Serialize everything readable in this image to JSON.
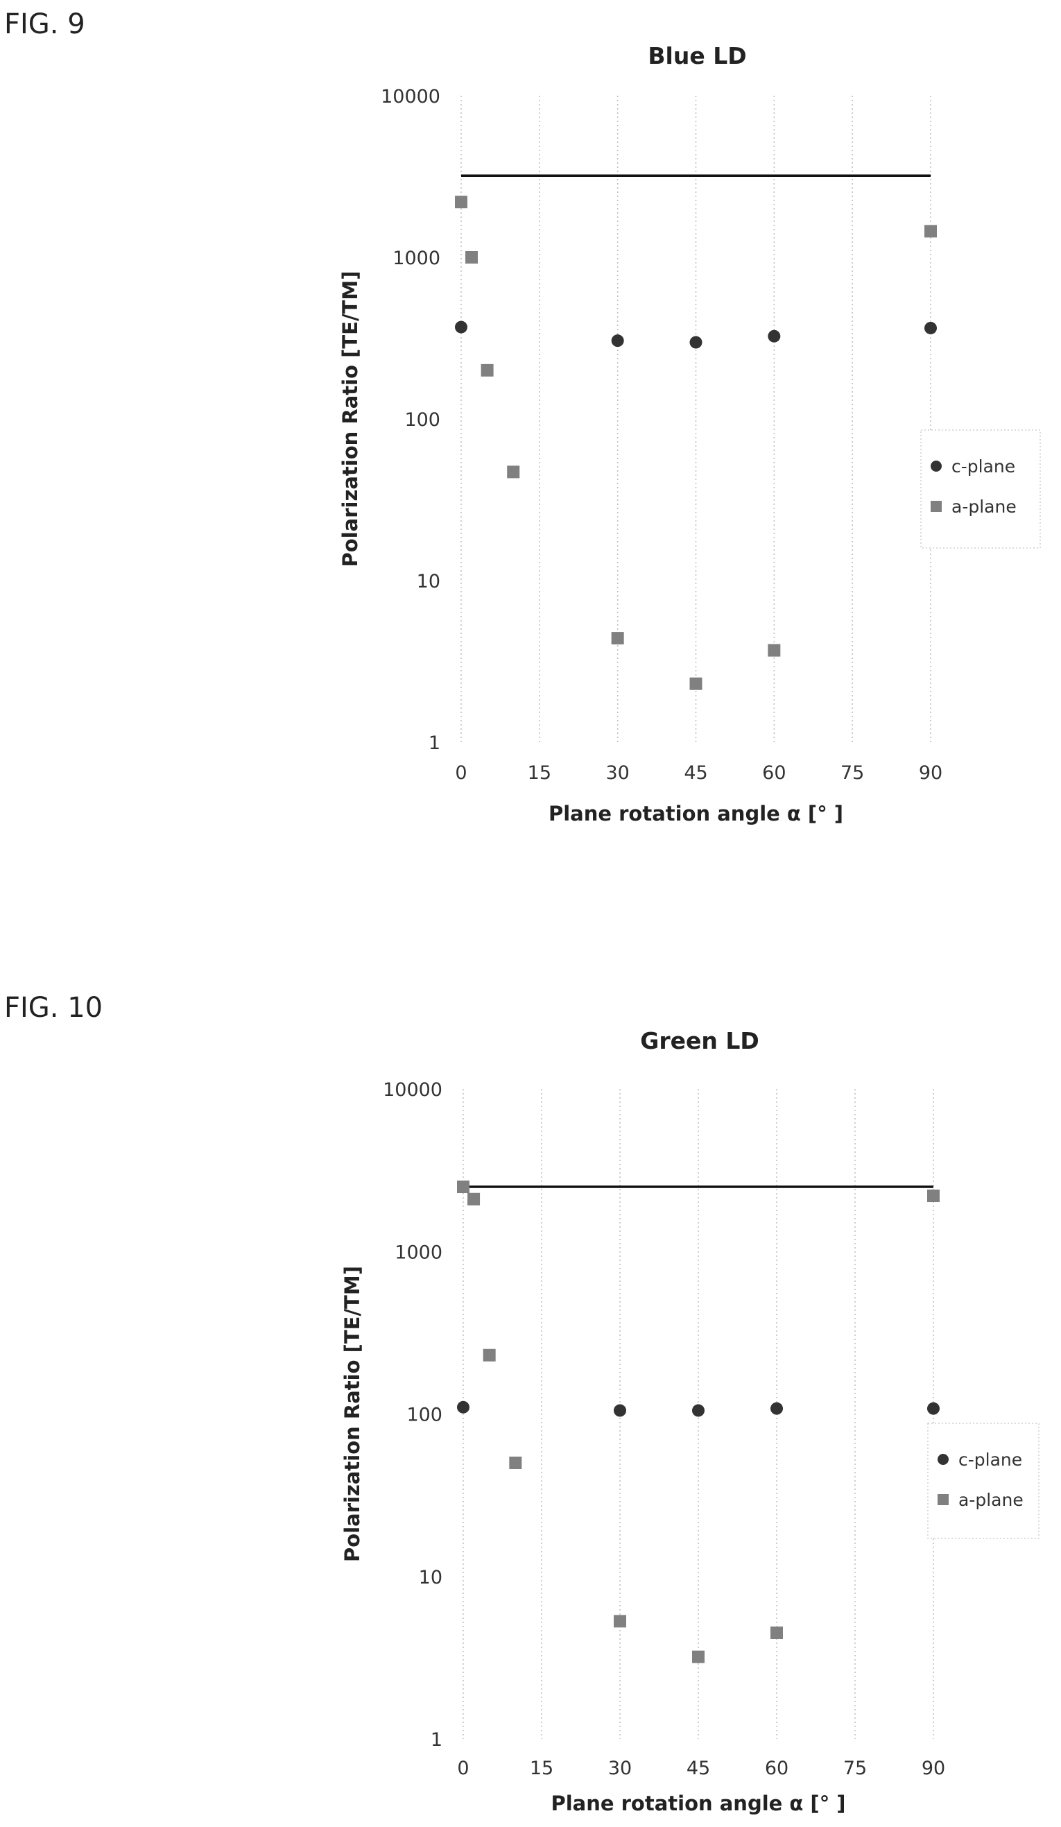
{
  "figures": [
    {
      "label": "FIG. 9"
    },
    {
      "label": "FIG. 10"
    }
  ],
  "chart_data": [
    {
      "type": "scatter",
      "title": "Blue LD",
      "xlabel": "Plane rotation angle α [° ]",
      "ylabel": "Polarization  Ratio [TE/TM]",
      "yscale": "log",
      "xlim": [
        0,
        90
      ],
      "ylim": [
        1,
        10000
      ],
      "xticks": [
        0,
        15,
        30,
        45,
        60,
        75,
        90
      ],
      "xtick_labels": [
        "0",
        "15",
        "30",
        "45",
        "60",
        "75",
        "90"
      ],
      "yticks": [
        1,
        10,
        100,
        1000,
        10000
      ],
      "ytick_labels": [
        "1",
        "10",
        "100",
        "1000",
        "10000"
      ],
      "grid": "vertical dotted",
      "legend_position": "right",
      "reference_line": {
        "y": 3200,
        "x_from": 0,
        "x_to": 90
      },
      "series": [
        {
          "name": "c-plane",
          "marker": "circle",
          "color": "#333333",
          "x": [
            0,
            30,
            45,
            60,
            90
          ],
          "y": [
            370,
            305,
            298,
            325,
            365
          ]
        },
        {
          "name": "a-plane",
          "marker": "square",
          "color": "#808080",
          "x": [
            0,
            2,
            5,
            10,
            30,
            45,
            60,
            90
          ],
          "y": [
            2200,
            1000,
            200,
            47,
            4.4,
            2.3,
            3.7,
            1450
          ]
        }
      ]
    },
    {
      "type": "scatter",
      "title": "Green LD",
      "xlabel": "Plane rotation angle α [° ]",
      "ylabel": "Polarization  Ratio [TE/TM]",
      "yscale": "log",
      "xlim": [
        0,
        90
      ],
      "ylim": [
        1,
        10000
      ],
      "xticks": [
        0,
        15,
        30,
        45,
        60,
        75,
        90
      ],
      "xtick_labels": [
        "0",
        "15",
        "30",
        "45",
        "60",
        "75",
        "90"
      ],
      "yticks": [
        1,
        10,
        100,
        1000,
        10000
      ],
      "ytick_labels": [
        "1",
        "10",
        "100",
        "1000",
        "10000"
      ],
      "grid": "vertical dotted",
      "legend_position": "right",
      "reference_line": {
        "y": 2500,
        "x_from": 0,
        "x_to": 90
      },
      "series": [
        {
          "name": "c-plane",
          "marker": "circle",
          "color": "#333333",
          "x": [
            0,
            30,
            45,
            60,
            90
          ],
          "y": [
            110,
            105,
            105,
            108,
            108
          ]
        },
        {
          "name": "a-plane",
          "marker": "square",
          "color": "#808080",
          "x": [
            0,
            2,
            5,
            10,
            30,
            45,
            60,
            90
          ],
          "y": [
            2500,
            2100,
            230,
            50,
            5.3,
            3.2,
            4.5,
            2200
          ]
        }
      ]
    }
  ]
}
